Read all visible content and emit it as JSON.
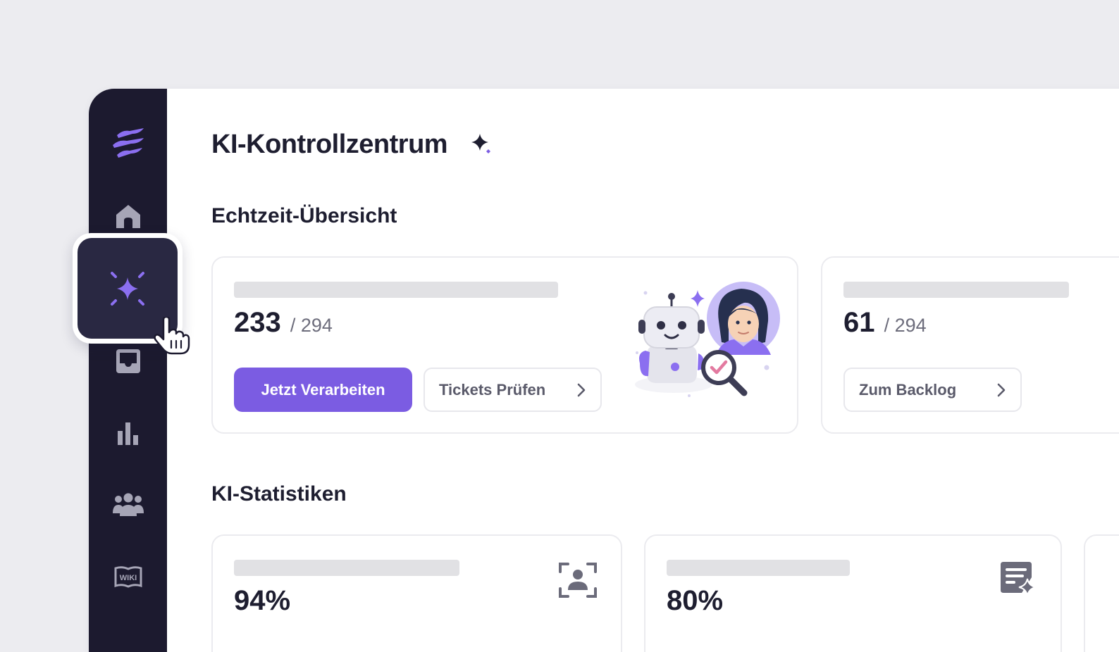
{
  "sidebar": {
    "items": [
      {
        "name": "logo",
        "icon": "logo-icon"
      },
      {
        "name": "home",
        "icon": "home-icon"
      },
      {
        "name": "ai",
        "icon": "sparkle-icon",
        "active": true
      },
      {
        "name": "inbox",
        "icon": "inbox-icon"
      },
      {
        "name": "reports",
        "icon": "bar-chart-icon"
      },
      {
        "name": "team",
        "icon": "users-icon"
      },
      {
        "name": "wiki",
        "icon": "wiki-icon",
        "label": "WIKI"
      }
    ]
  },
  "header": {
    "title": "KI-Kontrollzentrum"
  },
  "realtime": {
    "title": "Echtzeit-Übersicht",
    "cards": [
      {
        "value": "233",
        "total": "/ 294",
        "primary_button": "Jetzt Verarbeiten",
        "secondary_button": "Tickets Prüfen"
      },
      {
        "value": "61",
        "total": "/ 294",
        "secondary_button": "Zum Backlog"
      }
    ]
  },
  "stats": {
    "title": "KI-Statistiken",
    "cards": [
      {
        "value": "94%",
        "icon": "face-scan-icon"
      },
      {
        "value": "80%",
        "icon": "document-sparkle-icon"
      }
    ]
  },
  "colors": {
    "accent": "#7b5ce2",
    "sidebar_bg": "#1c1a2f",
    "active_tile": "#292842",
    "background": "#ececf0"
  }
}
